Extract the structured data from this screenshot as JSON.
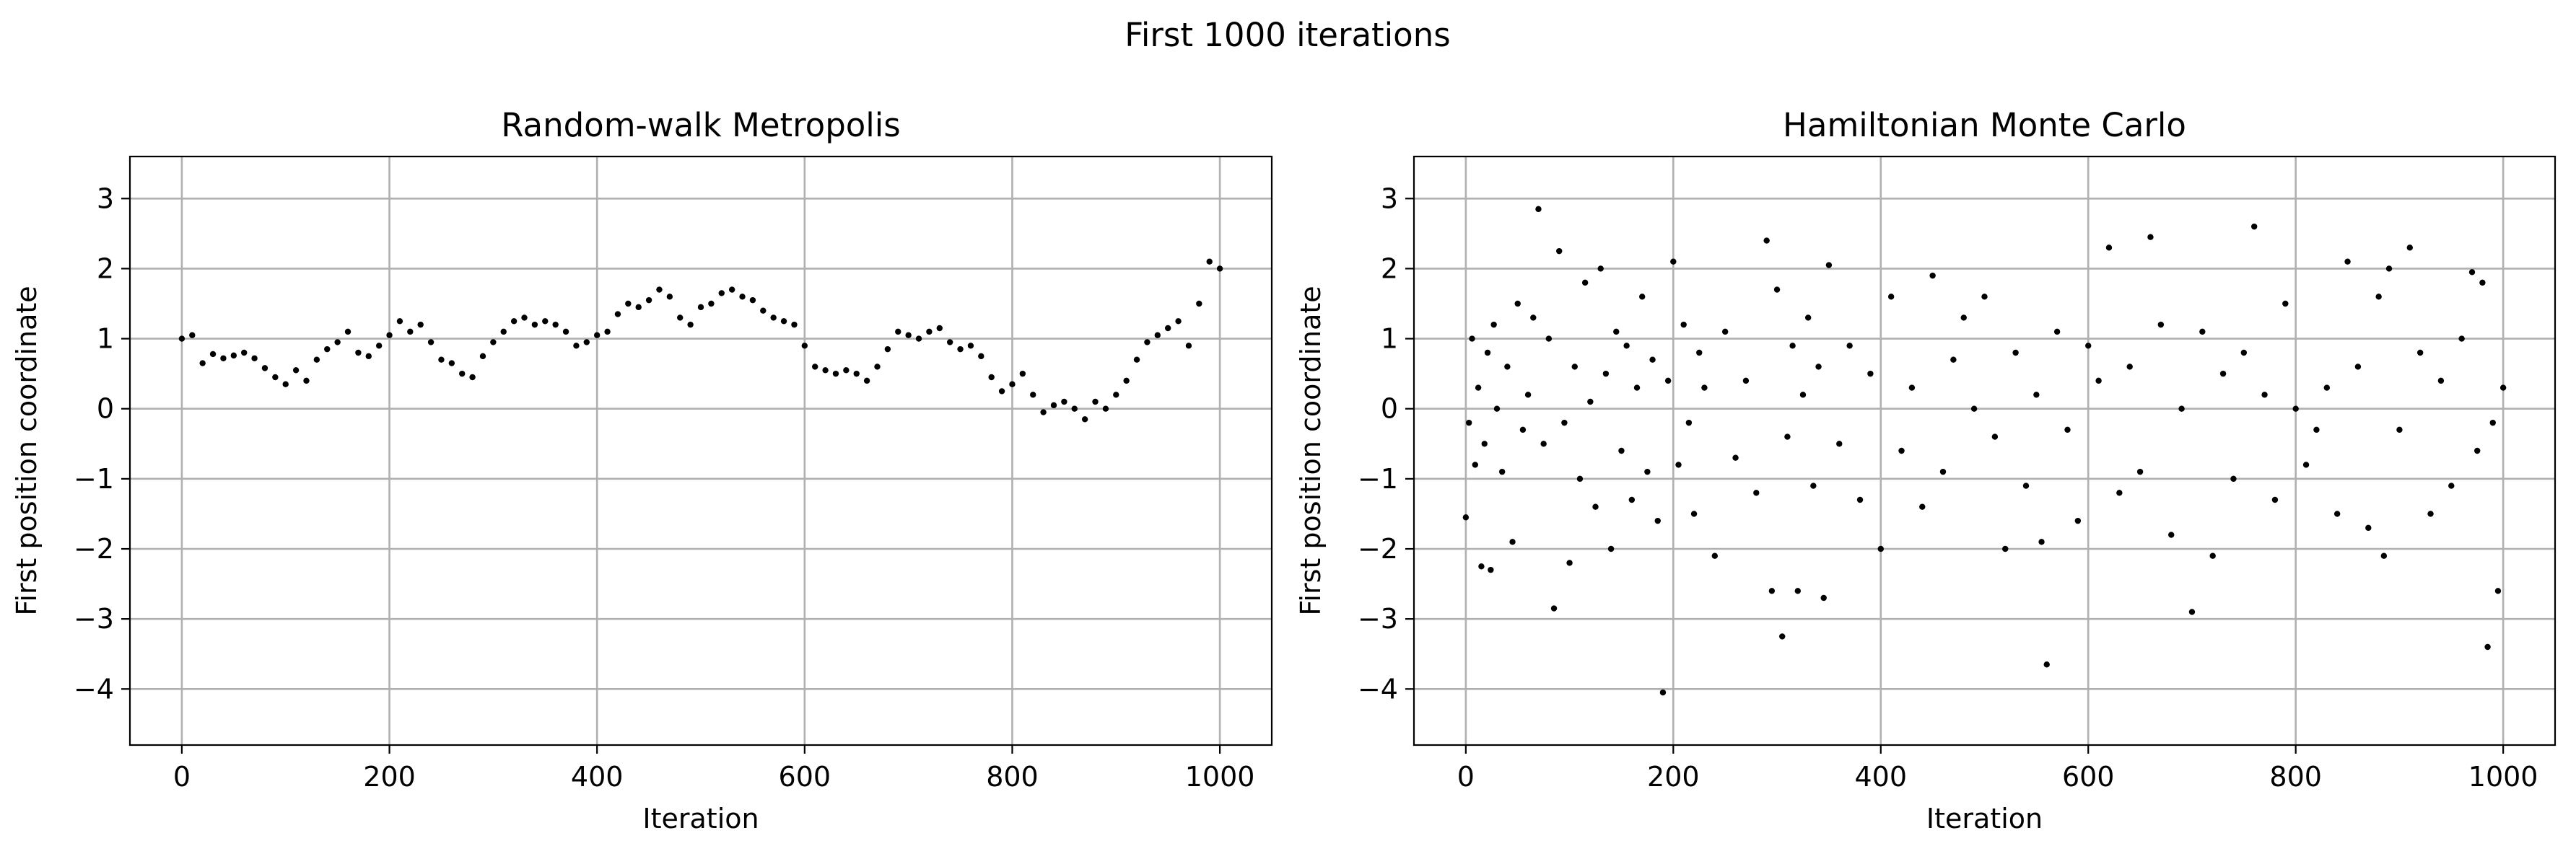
{
  "figure": {
    "suptitle": "First 1000 iterations"
  },
  "chart_data": [
    {
      "type": "scatter",
      "title": "Random-walk Metropolis",
      "xlabel": "Iteration",
      "ylabel": "First position coordinate",
      "xlim": [
        -50,
        1050
      ],
      "ylim": [
        -4.8,
        3.6
      ],
      "xticks": [
        0,
        200,
        400,
        600,
        800,
        1000
      ],
      "xtick_labels": [
        "0",
        "200",
        "400",
        "600",
        "800",
        "1000"
      ],
      "yticks": [
        3,
        2,
        1,
        0,
        -1,
        -2,
        -3,
        -4
      ],
      "ytick_labels": [
        "3",
        "2",
        "1",
        "0",
        "−1",
        "−2",
        "−3",
        "−4"
      ],
      "grid": true,
      "marker_color": "#000000",
      "series": [
        {
          "x": [
            0,
            10,
            20,
            30,
            40,
            50,
            60,
            70,
            80,
            90,
            100,
            110,
            120,
            130,
            140,
            150,
            160,
            170,
            180,
            190,
            200,
            210,
            220,
            230,
            240,
            250,
            260,
            270,
            280,
            290,
            300,
            310,
            320,
            330,
            340,
            350,
            360,
            370,
            380,
            390,
            400,
            410,
            420,
            430,
            440,
            450,
            460,
            470,
            480,
            490,
            500,
            510,
            520,
            530,
            540,
            550,
            560,
            570,
            580,
            590,
            600,
            610,
            620,
            630,
            640,
            650,
            660,
            670,
            680,
            690,
            700,
            710,
            720,
            730,
            740,
            750,
            760,
            770,
            780,
            790,
            800,
            810,
            820,
            830,
            840,
            850,
            860,
            870,
            880,
            890,
            900,
            910,
            920,
            930,
            940,
            950,
            960,
            970,
            980,
            990,
            1000
          ],
          "y": [
            1.0,
            1.05,
            0.65,
            0.78,
            0.72,
            0.76,
            0.8,
            0.72,
            0.58,
            0.45,
            0.35,
            0.55,
            0.4,
            0.7,
            0.85,
            0.95,
            1.1,
            0.8,
            0.75,
            0.9,
            1.05,
            1.25,
            1.1,
            1.2,
            0.95,
            0.7,
            0.65,
            0.5,
            0.45,
            0.75,
            0.95,
            1.1,
            1.25,
            1.3,
            1.2,
            1.25,
            1.2,
            1.1,
            0.9,
            0.95,
            1.05,
            1.1,
            1.35,
            1.5,
            1.45,
            1.55,
            1.7,
            1.6,
            1.3,
            1.2,
            1.45,
            1.5,
            1.65,
            1.7,
            1.6,
            1.55,
            1.4,
            1.3,
            1.25,
            1.2,
            0.9,
            0.6,
            0.55,
            0.5,
            0.55,
            0.5,
            0.4,
            0.6,
            0.85,
            1.1,
            1.05,
            1.0,
            1.1,
            1.15,
            0.95,
            0.85,
            0.9,
            0.75,
            0.45,
            0.25,
            0.35,
            0.5,
            0.2,
            -0.05,
            0.05,
            0.1,
            0.0,
            -0.15,
            0.1,
            0.0,
            0.2,
            0.4,
            0.7,
            0.95,
            1.05,
            1.15,
            1.25,
            0.9,
            1.5,
            2.1,
            2.0
          ]
        }
      ]
    },
    {
      "type": "scatter",
      "title": "Hamiltonian Monte Carlo",
      "xlabel": "Iteration",
      "ylabel": "First position coordinate",
      "xlim": [
        -50,
        1050
      ],
      "ylim": [
        -4.8,
        3.6
      ],
      "xticks": [
        0,
        200,
        400,
        600,
        800,
        1000
      ],
      "xtick_labels": [
        "0",
        "200",
        "400",
        "600",
        "800",
        "1000"
      ],
      "yticks": [
        3,
        2,
        1,
        0,
        -1,
        -2,
        -3,
        -4
      ],
      "ytick_labels": [
        "3",
        "2",
        "1",
        "0",
        "−1",
        "−2",
        "−3",
        "−4"
      ],
      "grid": true,
      "marker_color": "#000000",
      "series": [
        {
          "x": [
            0,
            3,
            6,
            9,
            12,
            15,
            18,
            21,
            24,
            27,
            30,
            35,
            40,
            45,
            50,
            55,
            60,
            65,
            70,
            75,
            80,
            85,
            90,
            95,
            100,
            105,
            110,
            115,
            120,
            125,
            130,
            135,
            140,
            145,
            150,
            155,
            160,
            165,
            170,
            175,
            180,
            185,
            190,
            195,
            200,
            205,
            210,
            215,
            220,
            225,
            230,
            240,
            250,
            260,
            270,
            280,
            290,
            295,
            300,
            305,
            310,
            315,
            320,
            325,
            330,
            335,
            340,
            345,
            350,
            360,
            370,
            380,
            390,
            400,
            410,
            420,
            430,
            440,
            450,
            460,
            470,
            480,
            490,
            500,
            510,
            520,
            530,
            540,
            550,
            555,
            560,
            570,
            580,
            590,
            600,
            610,
            620,
            630,
            640,
            650,
            660,
            670,
            680,
            690,
            700,
            710,
            720,
            730,
            740,
            750,
            760,
            770,
            780,
            790,
            800,
            810,
            820,
            830,
            840,
            850,
            860,
            870,
            880,
            885,
            890,
            900,
            910,
            920,
            930,
            940,
            950,
            960,
            970,
            975,
            980,
            985,
            990,
            995,
            1000
          ],
          "y": [
            -1.55,
            -0.2,
            1.0,
            -0.8,
            0.3,
            -2.25,
            -0.5,
            0.8,
            -2.3,
            1.2,
            0.0,
            -0.9,
            0.6,
            -1.9,
            1.5,
            -0.3,
            0.2,
            1.3,
            2.85,
            -0.5,
            1.0,
            -2.85,
            2.25,
            -0.2,
            -2.2,
            0.6,
            -1.0,
            1.8,
            0.1,
            -1.4,
            2.0,
            0.5,
            -2.0,
            1.1,
            -0.6,
            0.9,
            -1.3,
            0.3,
            1.6,
            -0.9,
            0.7,
            -1.6,
            -4.05,
            0.4,
            2.1,
            -0.8,
            1.2,
            -0.2,
            -1.5,
            0.8,
            0.3,
            -2.1,
            1.1,
            -0.7,
            0.4,
            -1.2,
            2.4,
            -2.6,
            1.7,
            -3.25,
            -0.4,
            0.9,
            -2.6,
            0.2,
            1.3,
            -1.1,
            0.6,
            -2.7,
            2.05,
            -0.5,
            0.9,
            -1.3,
            0.5,
            -2.0,
            1.6,
            -0.6,
            0.3,
            -1.4,
            1.9,
            -0.9,
            0.7,
            1.3,
            0.0,
            1.6,
            -0.4,
            -2.0,
            0.8,
            -1.1,
            0.2,
            -1.9,
            -3.65,
            1.1,
            -0.3,
            -1.6,
            0.9,
            0.4,
            2.3,
            -1.2,
            0.6,
            -0.9,
            2.45,
            1.2,
            -1.8,
            0.0,
            -2.9,
            1.1,
            -2.1,
            0.5,
            -1.0,
            0.8,
            2.6,
            0.2,
            -1.3,
            1.5,
            0.0,
            -0.8,
            -0.3,
            0.3,
            -1.5,
            2.1,
            0.6,
            -1.7,
            1.6,
            -2.1,
            2.0,
            -0.3,
            2.3,
            0.8,
            -1.5,
            0.4,
            -1.1,
            1.0,
            1.95,
            -0.6,
            1.8,
            -3.4,
            -0.2,
            -2.6,
            0.3
          ]
        }
      ]
    }
  ]
}
